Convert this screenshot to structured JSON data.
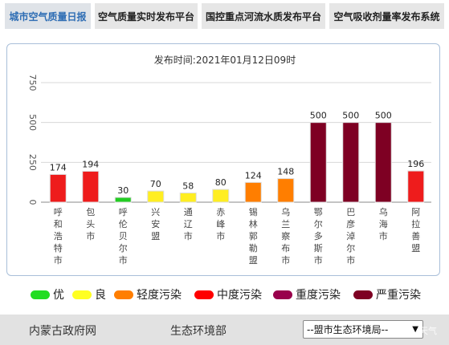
{
  "tabs": [
    {
      "label": "城市空气质量日报"
    },
    {
      "label": "空气质量实时发布平台"
    },
    {
      "label": "国控重点河流水质发布平台"
    },
    {
      "label": "空气吸收剂量率发布系统"
    }
  ],
  "chart_data": {
    "type": "bar",
    "title": "发布时间:2021年01月12日09时",
    "ylim": [
      0,
      750
    ],
    "yticks": [
      "0",
      "250",
      "500",
      "750"
    ],
    "categories": [
      "呼和浩特市",
      "包头市",
      "呼伦贝尔市",
      "兴安盟",
      "通辽市",
      "赤峰市",
      "锡林郭勒盟",
      "乌兰察布市",
      "鄂尔多斯市",
      "巴彦淖尔市",
      "乌海市",
      "阿拉善盟"
    ],
    "values": [
      174,
      194,
      30,
      70,
      58,
      80,
      124,
      148,
      500,
      500,
      500,
      196
    ],
    "value_labels": [
      "174",
      "194",
      "30",
      "70",
      "58",
      "80",
      "124",
      "148",
      "500",
      "500",
      "500",
      "196"
    ],
    "colors": [
      "#ee1c1c",
      "#ee1c1c",
      "#22cc22",
      "#ffee22",
      "#ffee22",
      "#ffee22",
      "#ff7e00",
      "#ff7e00",
      "#7e0023",
      "#7e0023",
      "#7e0023",
      "#ee1c1c"
    ]
  },
  "legend": [
    {
      "label": "优",
      "color": "#22dd22"
    },
    {
      "label": "良",
      "color": "#ffff22"
    },
    {
      "label": "轻度污染",
      "color": "#ff7e00"
    },
    {
      "label": "中度污染",
      "color": "#ff0000"
    },
    {
      "label": "重度污染",
      "color": "#99004c"
    },
    {
      "label": "严重污染",
      "color": "#7e0023"
    }
  ],
  "footer": {
    "link1": "内蒙古政府网",
    "link2": "生态环境部",
    "select_value": "--盟市生态环境局--",
    "watermark": "天气"
  }
}
